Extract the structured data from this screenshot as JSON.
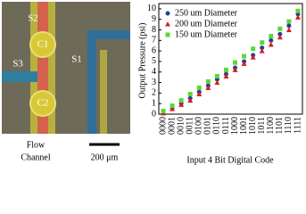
{
  "image": {
    "labels": [
      "S2",
      "C1",
      "S3",
      "S1",
      "C2"
    ],
    "caption": [
      "Flow",
      "Channel"
    ],
    "scale": "200 μm"
  },
  "chart_data": {
    "type": "scatter",
    "xlabel": "Input 4 Bit Digital Code",
    "ylabel": "Output Pressure (psi)",
    "categories": [
      "0000",
      "0001",
      "0010",
      "0011",
      "0100",
      "0101",
      "0110",
      "0111",
      "1000",
      "1001",
      "1010",
      "1011",
      "1100",
      "1101",
      "1110",
      "1111"
    ],
    "series": [
      {
        "name": "250 um Diameter",
        "color": "#2a3f8f",
        "marker": "circle",
        "values": [
          0.2,
          0.6,
          1.0,
          1.5,
          2.1,
          2.7,
          3.3,
          3.8,
          4.4,
          5.0,
          5.6,
          6.3,
          7.0,
          7.6,
          8.4,
          9.5
        ]
      },
      {
        "name": "200 um Diameter",
        "color": "#d62020",
        "marker": "triangle",
        "values": [
          0.1,
          0.5,
          0.9,
          1.3,
          1.9,
          2.5,
          3.0,
          3.6,
          4.2,
          4.8,
          5.4,
          6.0,
          6.6,
          7.3,
          8.0,
          9.2
        ]
      },
      {
        "name": "150 um Diameter",
        "color": "#5ad838",
        "marker": "square",
        "values": [
          0.3,
          0.8,
          1.3,
          1.9,
          2.5,
          3.1,
          3.6,
          4.2,
          4.9,
          5.5,
          6.2,
          6.8,
          7.4,
          8.1,
          8.8,
          9.8
        ]
      }
    ],
    "ylim": [
      0,
      10.5
    ],
    "yticks": [
      0,
      1,
      2,
      3,
      4,
      5,
      6,
      7,
      8,
      9,
      10
    ],
    "legend": "upper-left"
  }
}
